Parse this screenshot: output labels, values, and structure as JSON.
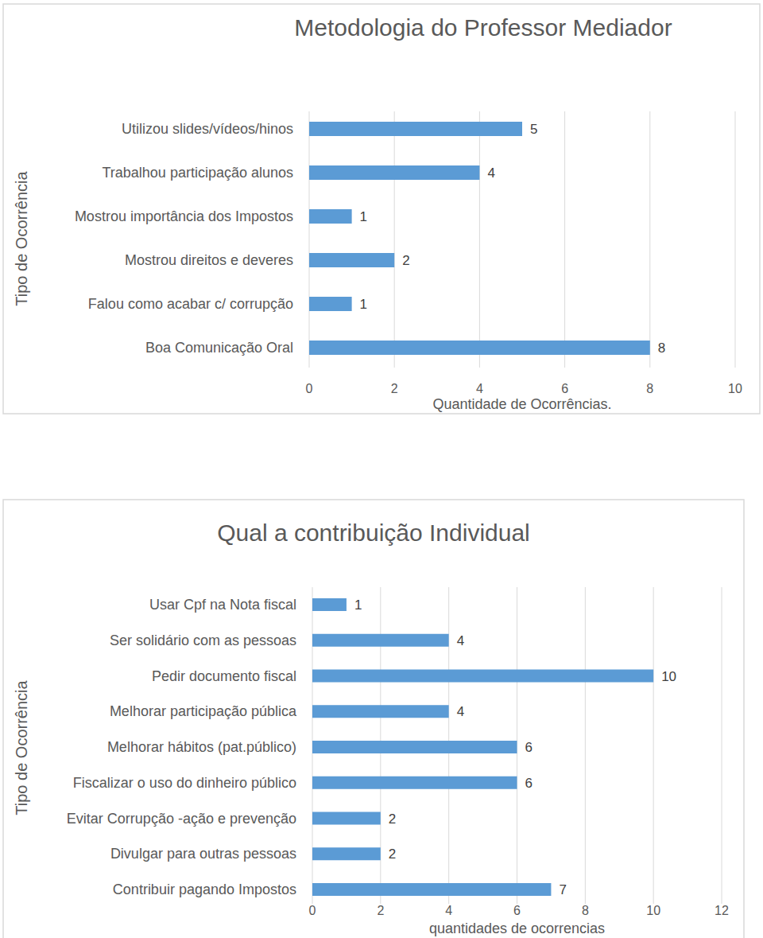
{
  "chart_data": [
    {
      "type": "bar",
      "orientation": "horizontal",
      "title": "Metodologia do Professor Mediador",
      "xlabel": "Quantidade de Ocorrências.",
      "ylabel": "Tipo de Ocorrência",
      "categories": [
        "Utilizou slides/vídeos/hinos",
        "Trabalhou  participação alunos",
        "Mostrou importância dos Impostos",
        "Mostrou direitos e deveres",
        "Falou como acabar c/ corrupção",
        "Boa Comunicação Oral"
      ],
      "values": [
        5,
        4,
        1,
        2,
        1,
        8
      ],
      "color": "#5b9bd5",
      "xlim": [
        0,
        10
      ],
      "xticks": [
        0,
        2,
        4,
        6,
        8,
        10
      ],
      "grid": true,
      "data_labels": true
    },
    {
      "type": "bar",
      "orientation": "horizontal",
      "title": "Qual a contribuição Individual",
      "xlabel": "quantidades de ocorrencias",
      "ylabel": "Tipo de Ocorrência",
      "categories": [
        "Usar Cpf na Nota fiscal",
        "Ser solidário com as pessoas",
        "Pedir documento fiscal",
        "Melhorar participação pública",
        "Melhorar hábitos (pat.público)",
        "Fiscalizar o uso do dinheiro público",
        "Evitar Corrupção -ação e prevenção",
        "Divulgar para outras pessoas",
        "Contribuir pagando Impostos"
      ],
      "values": [
        1,
        4,
        10,
        4,
        6,
        6,
        2,
        2,
        7
      ],
      "color": "#5b9bd5",
      "xlim": [
        0,
        12
      ],
      "xticks": [
        0,
        2,
        4,
        6,
        8,
        10,
        12
      ],
      "grid": true,
      "data_labels": true
    }
  ]
}
